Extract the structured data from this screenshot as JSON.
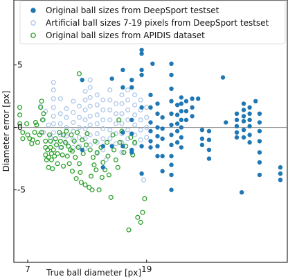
{
  "chart_data": {
    "type": "scatter",
    "xlabel": "True ball diameter [px]",
    "ylabel": "Diameter error [px]",
    "xlim": [
      5.6,
      33.2
    ],
    "ylim": [
      -10.8,
      10.2
    ],
    "xticks": [
      7,
      19
    ],
    "yticks": [
      -5,
      0,
      5
    ],
    "zero_line": 0,
    "grid": false,
    "legend_position": "top-right",
    "colors": {
      "deepsport": "#1f77b4",
      "artificial": "#aec7e8",
      "apidis": "#2ca02c",
      "zero_line": "#808080"
    },
    "series": [
      {
        "name": "Original ball sizes from DeepSport testset",
        "marker": "filled",
        "points": [
          [
            19.4,
            2.6
          ],
          [
            19.4,
            1.6
          ],
          [
            19.4,
            0.4
          ],
          [
            19.4,
            -0.3
          ],
          [
            19.4,
            -1.1
          ],
          [
            19.4,
            -1.6
          ],
          [
            20.1,
            1.9
          ],
          [
            20.1,
            1.1
          ],
          [
            20.1,
            0.0
          ],
          [
            20.1,
            -0.7
          ],
          [
            20.1,
            -1.5
          ],
          [
            20.1,
            -2.3
          ],
          [
            20.6,
            0.8
          ],
          [
            20.6,
            -0.1
          ],
          [
            20.6,
            -0.9
          ],
          [
            20.6,
            -2.3
          ],
          [
            20.6,
            -3.5
          ],
          [
            21.5,
            5.1
          ],
          [
            21.5,
            4.2
          ],
          [
            21.5,
            3.1
          ],
          [
            21.5,
            2.1
          ],
          [
            21.5,
            1.1
          ],
          [
            21.5,
            0.2
          ],
          [
            21.5,
            -0.6
          ],
          [
            21.5,
            -1.4
          ],
          [
            21.5,
            -2.3
          ],
          [
            21.5,
            -3.0
          ],
          [
            21.5,
            -3.8
          ],
          [
            21.5,
            -5.0
          ],
          [
            22.1,
            1.8
          ],
          [
            22.1,
            1.0
          ],
          [
            22.1,
            0.3
          ],
          [
            22.1,
            -0.3
          ],
          [
            22.1,
            -1.2
          ],
          [
            22.5,
            2.4
          ],
          [
            22.5,
            1.9
          ],
          [
            22.5,
            1.3
          ],
          [
            22.5,
            0.6
          ],
          [
            22.5,
            0.0
          ],
          [
            22.5,
            -0.8
          ],
          [
            22.5,
            -1.6
          ],
          [
            23.0,
            2.1
          ],
          [
            23.0,
            1.3
          ],
          [
            23.0,
            0.6
          ],
          [
            23.6,
            2.3
          ],
          [
            23.6,
            1.6
          ],
          [
            23.6,
            0.9
          ],
          [
            24.2,
            2.3
          ],
          [
            24.6,
            -0.2
          ],
          [
            24.6,
            -0.9
          ],
          [
            24.6,
            -1.4
          ],
          [
            25.3,
            -0.3
          ],
          [
            25.3,
            -1.0
          ],
          [
            25.3,
            -1.8
          ],
          [
            25.3,
            -2.5
          ],
          [
            26.7,
            4.0
          ],
          [
            27.0,
            0.4
          ],
          [
            28.1,
            1.1
          ],
          [
            28.1,
            0.6
          ],
          [
            28.1,
            0.1
          ],
          [
            28.1,
            -0.4
          ],
          [
            28.1,
            -0.8
          ],
          [
            28.6,
            -5.2
          ],
          [
            28.8,
            1.9
          ],
          [
            28.8,
            1.4
          ],
          [
            28.8,
            0.9
          ],
          [
            28.8,
            0.5
          ],
          [
            28.8,
            -0.2
          ],
          [
            28.8,
            -0.8
          ],
          [
            29.4,
            1.6
          ],
          [
            29.4,
            1.1
          ],
          [
            29.4,
            0.6
          ],
          [
            29.4,
            0.1
          ],
          [
            29.4,
            -0.6
          ],
          [
            29.4,
            -1.2
          ],
          [
            30.0,
            2.1
          ],
          [
            30.4,
            1.1
          ],
          [
            30.4,
            0.4
          ],
          [
            30.4,
            -0.3
          ],
          [
            30.4,
            -1.1
          ],
          [
            30.4,
            -2.0
          ],
          [
            30.4,
            -2.8
          ],
          [
            30.4,
            -3.8
          ],
          [
            32.5,
            -3.2
          ],
          [
            32.5,
            -3.7
          ],
          [
            32.5,
            -4.2
          ],
          [
            12.5,
            3.8
          ],
          [
            12.5,
            -1.8
          ],
          [
            14.6,
            -1.5
          ],
          [
            14.6,
            -3.2
          ],
          [
            15.5,
            3.9
          ],
          [
            15.5,
            -1.5
          ],
          [
            16.6,
            4.6
          ],
          [
            16.6,
            3.2
          ],
          [
            16.6,
            -0.4
          ],
          [
            16.6,
            -1.5
          ],
          [
            17.5,
            3.8
          ],
          [
            17.5,
            3.2
          ],
          [
            17.5,
            0.6
          ],
          [
            17.5,
            -0.5
          ],
          [
            17.5,
            -1.8
          ],
          [
            17.5,
            -2.0
          ],
          [
            18.5,
            6.2
          ],
          [
            18.5,
            5.9
          ],
          [
            18.5,
            4.6
          ],
          [
            18.5,
            4.2
          ],
          [
            18.5,
            1.6
          ],
          [
            18.5,
            -1.5
          ],
          [
            18.5,
            -3.7
          ],
          [
            19.6,
            5.1
          ]
        ]
      },
      {
        "name": "Artificial ball sizes 7-19 pixels from DeepSport testset",
        "marker": "open",
        "points": [
          [
            8.3,
            1.7
          ],
          [
            8.6,
            0.6
          ],
          [
            8.6,
            -0.4
          ],
          [
            8.8,
            1.3
          ],
          [
            9.1,
            0.2
          ],
          [
            9.3,
            -0.8
          ],
          [
            9.6,
            3.6
          ],
          [
            9.6,
            3.0
          ],
          [
            9.6,
            2.3
          ],
          [
            9.6,
            1.6
          ],
          [
            9.6,
            0.9
          ],
          [
            9.6,
            0.3
          ],
          [
            9.6,
            -0.4
          ],
          [
            9.6,
            -1.2
          ],
          [
            10.3,
            2.3
          ],
          [
            10.3,
            1.1
          ],
          [
            10.3,
            0.3
          ],
          [
            10.3,
            -0.6
          ],
          [
            10.3,
            -1.6
          ],
          [
            10.9,
            1.5
          ],
          [
            10.9,
            0.8
          ],
          [
            10.9,
            0.0
          ],
          [
            10.9,
            -0.7
          ],
          [
            10.9,
            -1.3
          ],
          [
            11.6,
            2.1
          ],
          [
            11.6,
            1.2
          ],
          [
            11.6,
            0.4
          ],
          [
            11.6,
            -0.3
          ],
          [
            11.6,
            -1.0
          ],
          [
            11.6,
            -1.6
          ],
          [
            12.2,
            1.7
          ],
          [
            12.2,
            0.8
          ],
          [
            12.2,
            0.0
          ],
          [
            12.2,
            -0.8
          ],
          [
            12.2,
            -1.5
          ],
          [
            12.8,
            2.9
          ],
          [
            12.8,
            2.2
          ],
          [
            12.8,
            1.4
          ],
          [
            12.8,
            0.6
          ],
          [
            12.8,
            -0.1
          ],
          [
            12.8,
            -0.9
          ],
          [
            12.8,
            -1.7
          ],
          [
            13.3,
            3.8
          ],
          [
            13.3,
            3.2
          ],
          [
            13.3,
            2.4
          ],
          [
            13.3,
            1.7
          ],
          [
            13.3,
            0.9
          ],
          [
            13.3,
            0.2
          ],
          [
            13.3,
            -0.6
          ],
          [
            13.3,
            -1.4
          ],
          [
            14.0,
            2.6
          ],
          [
            14.0,
            1.8
          ],
          [
            14.0,
            1.0
          ],
          [
            14.0,
            0.3
          ],
          [
            14.0,
            -0.5
          ],
          [
            14.0,
            -1.2
          ],
          [
            14.0,
            -2.1
          ],
          [
            14.6,
            2.2
          ],
          [
            14.6,
            1.4
          ],
          [
            14.6,
            0.6
          ],
          [
            14.6,
            -0.1
          ],
          [
            14.6,
            -0.9
          ],
          [
            14.6,
            -1.8
          ],
          [
            15.3,
            3.0
          ],
          [
            15.3,
            2.2
          ],
          [
            15.3,
            1.4
          ],
          [
            15.3,
            0.6
          ],
          [
            15.3,
            -0.2
          ],
          [
            15.3,
            -0.9
          ],
          [
            15.9,
            1.9
          ],
          [
            15.9,
            1.1
          ],
          [
            15.9,
            0.3
          ],
          [
            15.9,
            -0.5
          ],
          [
            15.9,
            -1.3
          ],
          [
            16.5,
            2.6
          ],
          [
            16.5,
            1.9
          ],
          [
            16.5,
            1.1
          ],
          [
            16.5,
            0.3
          ],
          [
            16.5,
            -0.5
          ],
          [
            16.5,
            -1.2
          ],
          [
            16.5,
            -2.0
          ],
          [
            17.1,
            3.0
          ],
          [
            17.1,
            2.2
          ],
          [
            17.1,
            1.4
          ],
          [
            17.1,
            0.6
          ],
          [
            17.1,
            -0.2
          ],
          [
            17.1,
            -0.9
          ],
          [
            17.8,
            2.6
          ],
          [
            17.8,
            1.8
          ],
          [
            17.8,
            1.0
          ],
          [
            17.8,
            0.2
          ],
          [
            17.8,
            -0.6
          ],
          [
            17.8,
            -1.3
          ],
          [
            18.4,
            2.2
          ],
          [
            18.4,
            1.4
          ],
          [
            18.4,
            0.6
          ],
          [
            18.4,
            -0.2
          ],
          [
            18.4,
            -1.0
          ],
          [
            19.0,
            1.6
          ],
          [
            19.0,
            0.8
          ],
          [
            19.0,
            0.0
          ],
          [
            19.0,
            -0.8
          ],
          [
            18.7,
            -4.2
          ],
          [
            14.9,
            -2.6
          ]
        ]
      },
      {
        "name": "Original ball sizes from APIDIS dataset",
        "marker": "open",
        "points": [
          [
            6.2,
            1.6
          ],
          [
            6.2,
            1.0
          ],
          [
            6.2,
            0.3
          ],
          [
            6.5,
            -0.4
          ],
          [
            6.5,
            -0.9
          ],
          [
            6.9,
            0.3
          ],
          [
            7.0,
            -0.6
          ],
          [
            7.2,
            -0.9
          ],
          [
            7.5,
            -1.0
          ],
          [
            7.7,
            -0.4
          ],
          [
            7.9,
            0.2
          ],
          [
            8.0,
            -1.2
          ],
          [
            8.2,
            -0.6
          ],
          [
            8.3,
            1.6
          ],
          [
            8.4,
            2.1
          ],
          [
            8.4,
            -0.4
          ],
          [
            8.5,
            0.6
          ],
          [
            8.6,
            1.1
          ],
          [
            8.8,
            -1.1
          ],
          [
            8.8,
            -1.6
          ],
          [
            8.8,
            -2.2
          ],
          [
            8.9,
            -2.6
          ],
          [
            9.0,
            -1.8
          ],
          [
            9.1,
            -2.4
          ],
          [
            9.1,
            -3.2
          ],
          [
            9.2,
            -0.6
          ],
          [
            9.3,
            -1.1
          ],
          [
            9.3,
            -1.6
          ],
          [
            9.4,
            -2.1
          ],
          [
            9.4,
            -2.6
          ],
          [
            9.5,
            -3.3
          ],
          [
            9.6,
            -1.8
          ],
          [
            9.7,
            -2.3
          ],
          [
            9.8,
            -0.9
          ],
          [
            9.9,
            -1.4
          ],
          [
            10.0,
            -2.1
          ],
          [
            10.0,
            -2.9
          ],
          [
            10.2,
            -0.4
          ],
          [
            10.3,
            -1.1
          ],
          [
            10.4,
            -1.6
          ],
          [
            10.5,
            -2.2
          ],
          [
            10.6,
            -3.1
          ],
          [
            10.6,
            -0.6
          ],
          [
            10.8,
            -1.2
          ],
          [
            10.9,
            -0.3
          ],
          [
            11.0,
            -2.3
          ],
          [
            11.1,
            -1.5
          ],
          [
            11.2,
            -2.9
          ],
          [
            11.4,
            -0.6
          ],
          [
            11.5,
            -1.9
          ],
          [
            11.5,
            -3.5
          ],
          [
            11.7,
            -1.1
          ],
          [
            11.8,
            -2.4
          ],
          [
            11.9,
            -4.1
          ],
          [
            12.0,
            -0.4
          ],
          [
            12.1,
            -1.6
          ],
          [
            12.2,
            -2.9
          ],
          [
            12.3,
            -3.6
          ],
          [
            12.4,
            -4.4
          ],
          [
            12.5,
            -1.0
          ],
          [
            12.6,
            -2.1
          ],
          [
            12.8,
            -4.6
          ],
          [
            12.9,
            -1.4
          ],
          [
            13.0,
            -0.5
          ],
          [
            13.2,
            -4.8
          ],
          [
            13.3,
            -1.8
          ],
          [
            13.4,
            -3.9
          ],
          [
            13.5,
            -5.0
          ],
          [
            13.6,
            -2.4
          ],
          [
            13.8,
            -1.1
          ],
          [
            13.9,
            -3.4
          ],
          [
            14.0,
            -2.0
          ],
          [
            14.2,
            -5.0
          ],
          [
            14.4,
            -1.6
          ],
          [
            14.5,
            -4.0
          ],
          [
            14.6,
            -2.8
          ],
          [
            14.8,
            -3.4
          ],
          [
            15.0,
            -1.2
          ],
          [
            15.1,
            -2.3
          ],
          [
            15.4,
            -5.6
          ],
          [
            15.6,
            -0.6
          ],
          [
            15.7,
            -1.8
          ],
          [
            15.9,
            -2.6
          ],
          [
            16.1,
            -3.2
          ],
          [
            16.2,
            0.6
          ],
          [
            16.3,
            -1.2
          ],
          [
            16.5,
            -0.3
          ],
          [
            16.7,
            -2.0
          ],
          [
            16.9,
            -1.5
          ],
          [
            17.2,
            -8.2
          ],
          [
            17.4,
            -0.8
          ],
          [
            17.6,
            -2.2
          ],
          [
            17.8,
            -1.2
          ],
          [
            18.1,
            -7.2
          ],
          [
            18.4,
            -7.6
          ],
          [
            18.6,
            -6.8
          ],
          [
            18.8,
            -5.7
          ],
          [
            12.2,
            4.3
          ],
          [
            7.8,
            0.4
          ],
          [
            7.4,
            -1.3
          ],
          [
            11.3,
            -1.8
          ],
          [
            13.7,
            -3.0
          ],
          [
            15.2,
            -3.8
          ]
        ]
      }
    ]
  }
}
